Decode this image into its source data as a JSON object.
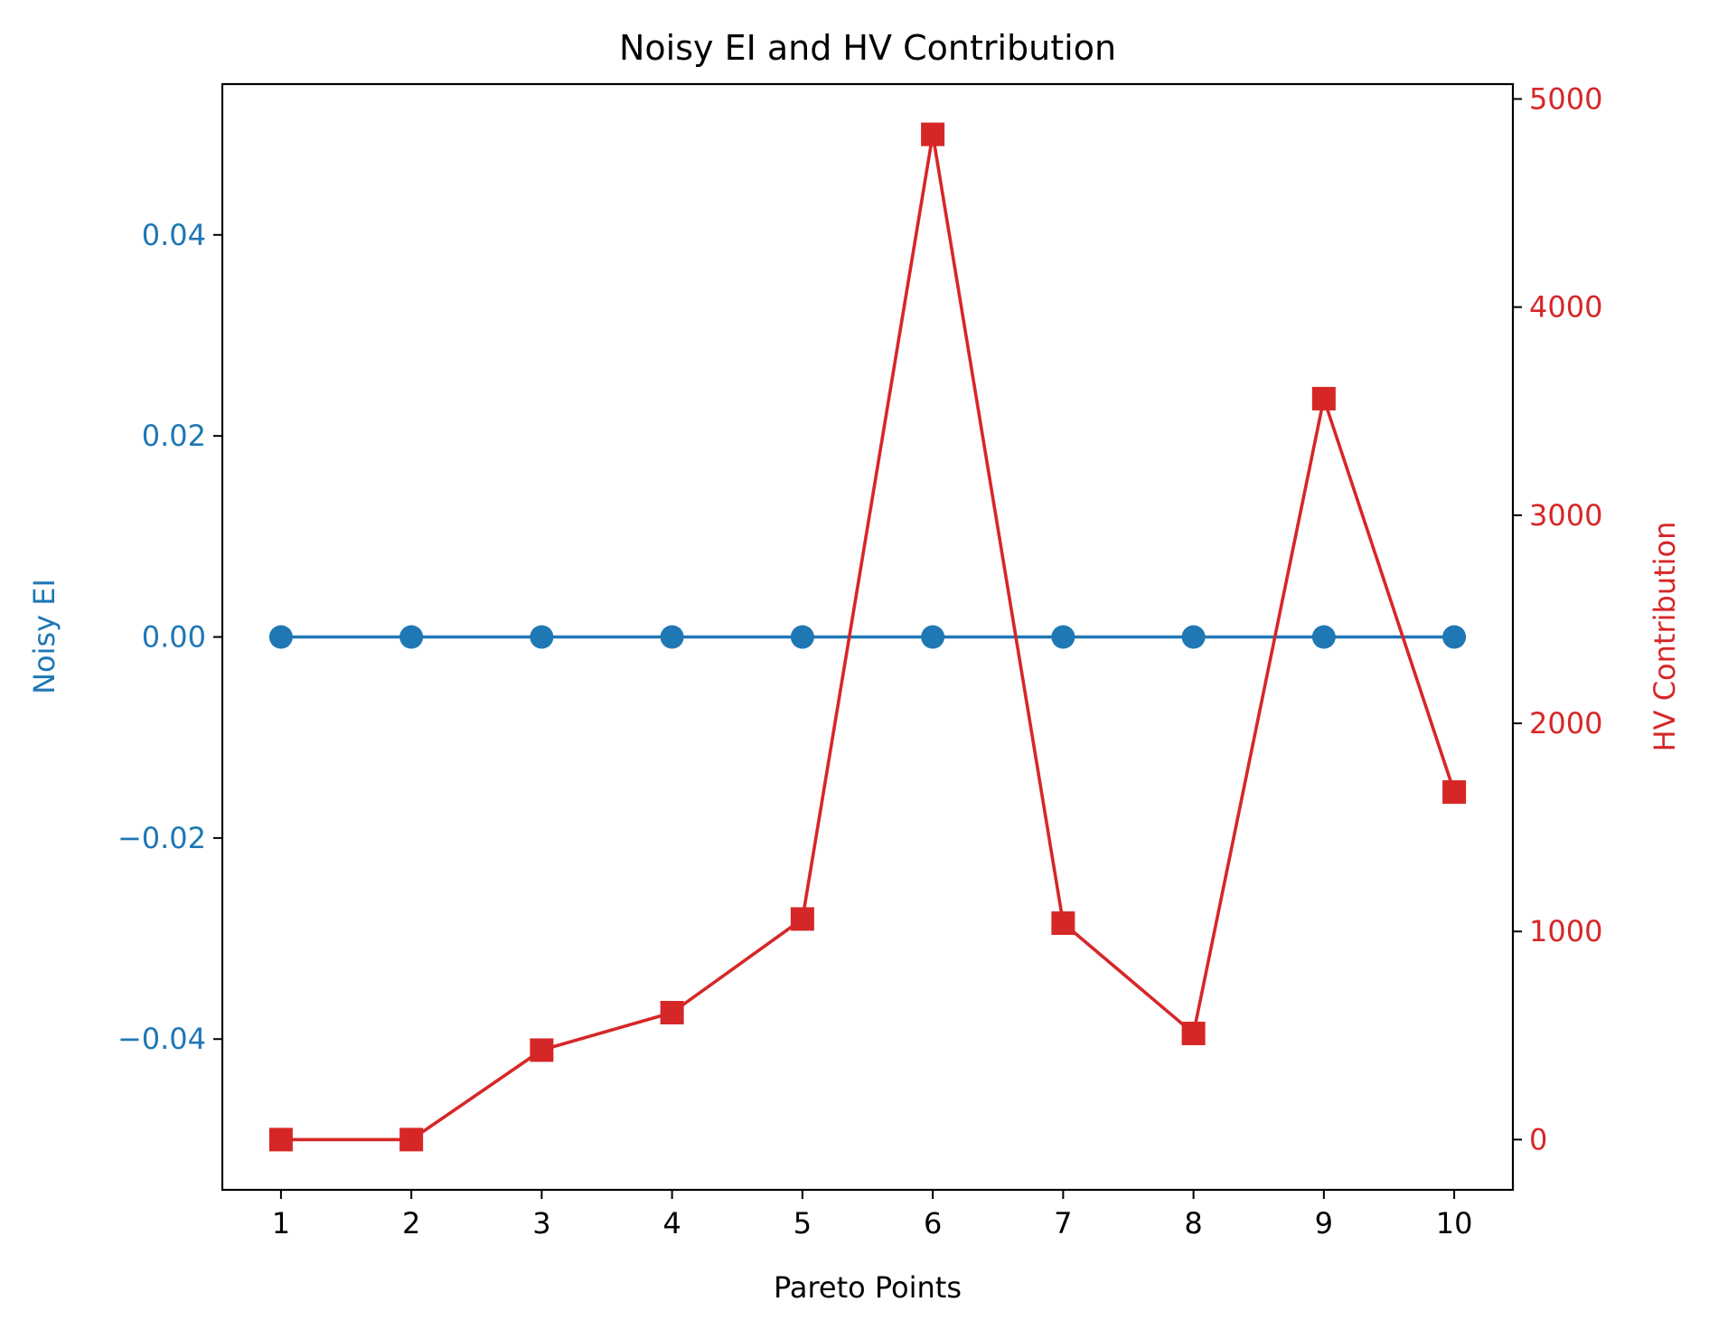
{
  "chart_data": {
    "type": "line",
    "title": "Noisy EI and HV Contribution",
    "xlabel": "Pareto Points",
    "x": [
      1,
      2,
      3,
      4,
      5,
      6,
      7,
      8,
      9,
      10
    ],
    "xticks": [
      "1",
      "2",
      "3",
      "4",
      "5",
      "6",
      "7",
      "8",
      "9",
      "10"
    ],
    "grid": false,
    "series": [
      {
        "name": "Noisy EI",
        "axis": "left",
        "color": "#1f77b4",
        "marker": "circle",
        "values": [
          0,
          0,
          0,
          0,
          0,
          0,
          0,
          0,
          0,
          0
        ]
      },
      {
        "name": "HV Contribution",
        "axis": "right",
        "color": "#d62728",
        "marker": "square",
        "values": [
          0,
          0,
          430,
          610,
          1060,
          4830,
          1040,
          510,
          3560,
          1670
        ]
      }
    ],
    "y_left": {
      "label": "Noisy EI",
      "color": "#1f77b4",
      "range": [
        -0.055,
        0.055
      ],
      "ticks": [
        -0.04,
        -0.02,
        0.0,
        0.02,
        0.04
      ],
      "tick_labels": [
        "−0.04",
        "−0.02",
        "0.00",
        "0.02",
        "0.04"
      ]
    },
    "y_right": {
      "label": "HV Contribution",
      "color": "#d62728",
      "range": [
        -241.5,
        5071.5
      ],
      "ticks": [
        0,
        1000,
        2000,
        3000,
        4000,
        5000
      ],
      "tick_labels": [
        "0",
        "1000",
        "2000",
        "3000",
        "4000",
        "5000"
      ]
    },
    "x_range": [
      0.55,
      10.45
    ]
  }
}
